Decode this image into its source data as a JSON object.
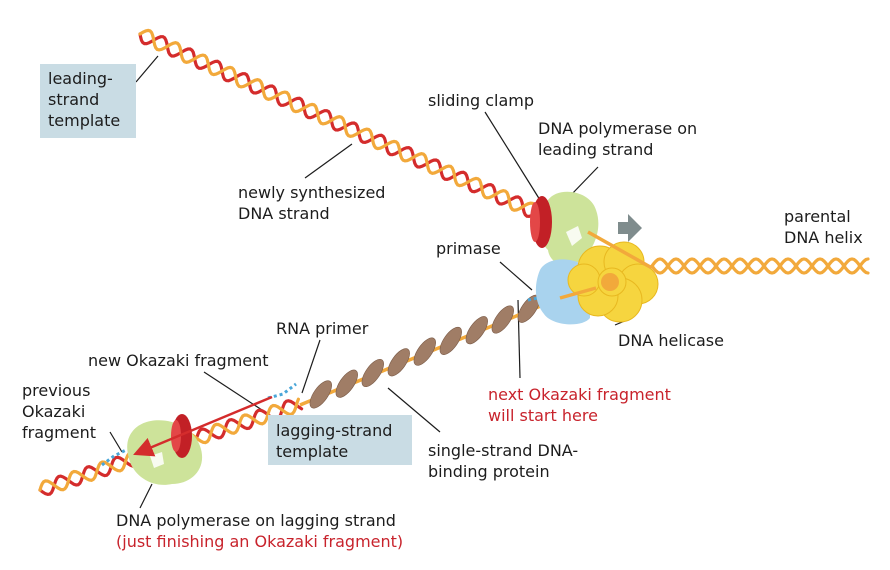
{
  "colors": {
    "leading_template": "#f2a93b",
    "new_strand": "#d42c2c",
    "parental": "#f2a93b",
    "sliding_clamp": "#d42c2c",
    "polymerase": "#cde39a",
    "helicase": "#f6d53f",
    "primase": "#a9d3ee",
    "ssb_protein": "#a07d66",
    "rna_primer": "#4aa6d8",
    "label_box": "#c9dce4",
    "highlight_text": "#c8232c",
    "arrow": "#7f8c8d"
  },
  "labels": {
    "leading_template": [
      "leading-",
      "strand",
      "template"
    ],
    "newly_synthesized": [
      "newly synthesized",
      "DNA strand"
    ],
    "sliding_clamp": "sliding clamp",
    "polymerase_leading": [
      "DNA polymerase on",
      "leading strand"
    ],
    "parental_helix": [
      "parental",
      "DNA helix"
    ],
    "primase": "primase",
    "dna_helicase": "DNA helicase",
    "rna_primer": "RNA primer",
    "new_okazaki": "new Okazaki fragment",
    "previous_okazaki": [
      "previous",
      "Okazaki",
      "fragment"
    ],
    "lagging_template": [
      "lagging-strand",
      "template"
    ],
    "ssb": [
      "single-strand DNA-",
      "binding protein"
    ],
    "next_okazaki": [
      "next Okazaki fragment",
      "will start here"
    ],
    "polymerase_lagging": [
      "DNA polymerase on lagging strand",
      "(just finishing an Okazaki fragment)"
    ]
  }
}
